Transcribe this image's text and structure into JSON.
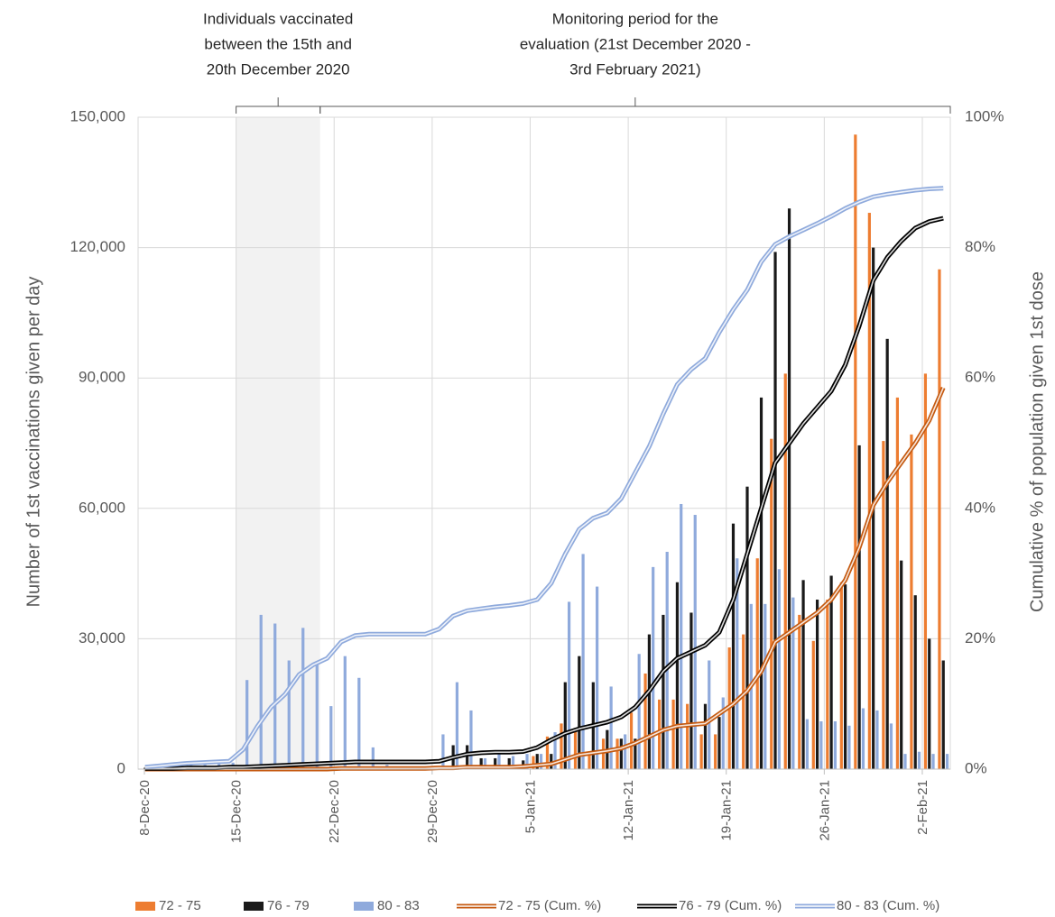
{
  "chart_data": {
    "type": "bar",
    "annotations": [
      [
        "Individuals vaccinated",
        "between the 15th and",
        "20th December 2020"
      ],
      [
        "Monitoring period for the",
        "evaluation (21st December 2020 -",
        "3rd February 2021)"
      ]
    ],
    "y_label": "Number of 1st vaccinations given per day",
    "y2_label": "Cumulative % of population given 1st dose",
    "categories": [
      "8-Dec-20",
      null,
      null,
      null,
      null,
      null,
      null,
      "15-Dec-20",
      null,
      null,
      null,
      null,
      null,
      null,
      "22-Dec-20",
      null,
      null,
      null,
      null,
      null,
      null,
      "29-Dec-20",
      null,
      null,
      null,
      null,
      null,
      null,
      "5-Jan-21",
      null,
      null,
      null,
      null,
      null,
      null,
      "12-Jan-21",
      null,
      null,
      null,
      null,
      null,
      null,
      "19-Jan-21",
      null,
      null,
      null,
      null,
      null,
      null,
      "26-Jan-21",
      null,
      null,
      null,
      null,
      null,
      null,
      "2-Feb-21",
      null
    ],
    "ylim": [
      0,
      150000
    ],
    "yticks": [
      0,
      {
        "value": 30000,
        "label": "30,000"
      },
      {
        "value": 60000,
        "label": "60,000"
      },
      {
        "value": 90000,
        "label": "90,000"
      },
      {
        "value": 120000,
        "label": "120,000"
      },
      {
        "value": 150000,
        "label": "150,000"
      }
    ],
    "y2lim": [
      0,
      100
    ],
    "y2ticks": [
      {
        "value": 0,
        "label": "0%"
      },
      {
        "value": 20,
        "label": "20%"
      },
      {
        "value": 40,
        "label": "40%"
      },
      {
        "value": 60,
        "label": "60%"
      },
      {
        "value": 80,
        "label": "80%"
      },
      {
        "value": 100,
        "label": "100%"
      }
    ],
    "grid": true,
    "legend": "bottom",
    "series": [
      {
        "name": "72 - 75",
        "type": "bar",
        "color": "#ed7d31",
        "values": [
          0,
          0,
          0,
          0,
          0,
          0,
          0,
          100,
          100,
          100,
          100,
          100,
          100,
          100,
          100,
          100,
          0,
          0,
          0,
          0,
          0,
          200,
          300,
          200,
          100,
          200,
          200,
          1000,
          3000,
          7500,
          10500,
          9000,
          4000,
          7000,
          7000,
          13000,
          22000,
          16000,
          16000,
          15000,
          8000,
          8000,
          28000,
          31000,
          48500,
          76000,
          91000,
          35500,
          29500,
          39000,
          43000,
          146000,
          128000,
          75500,
          85500,
          77000,
          91000,
          115000
        ]
      },
      {
        "name": "76 - 79",
        "type": "bar",
        "color": "#1a1a1a",
        "values": [
          300,
          300,
          400,
          400,
          300,
          300,
          300,
          400,
          400,
          400,
          400,
          400,
          400,
          500,
          600,
          600,
          500,
          300,
          300,
          300,
          300,
          500,
          5500,
          5500,
          2500,
          2500,
          2500,
          2000,
          3500,
          3500,
          20000,
          26000,
          20000,
          9000,
          7000,
          7000,
          31000,
          35500,
          43000,
          36000,
          15000,
          12000,
          56500,
          65000,
          85500,
          119000,
          129000,
          43500,
          39000,
          44500,
          42500,
          74500,
          120000,
          99000,
          48000,
          40000,
          30000,
          25000
        ]
      },
      {
        "name": "80 - 83",
        "type": "bar",
        "color": "#8faadc",
        "values": [
          500,
          800,
          1500,
          1200,
          1000,
          1200,
          1500,
          20500,
          35500,
          33500,
          25000,
          32500,
          24500,
          14500,
          26000,
          21000,
          5000,
          1000,
          500,
          500,
          500,
          8000,
          20000,
          13500,
          2500,
          4000,
          3000,
          3500,
          3500,
          8500,
          38500,
          49500,
          42000,
          19000,
          8000,
          26500,
          46500,
          50000,
          61000,
          58500,
          25000,
          16500,
          48500,
          38000,
          38000,
          46000,
          39500,
          11500,
          11000,
          11000,
          10000,
          14000,
          13500,
          10500,
          3500,
          4000,
          3500,
          3500
        ]
      },
      {
        "name": "72 - 75 (Cum. %)",
        "type": "line",
        "axis": "y2",
        "color": "#c55a11",
        "values": [
          0,
          0,
          0,
          0,
          0,
          0,
          0,
          0,
          0,
          0,
          0,
          0,
          0,
          0,
          0.1,
          0.1,
          0.1,
          0.1,
          0.1,
          0.1,
          0.1,
          0.2,
          0.2,
          0.3,
          0.3,
          0.3,
          0.3,
          0.4,
          0.6,
          0.8,
          1.5,
          2.2,
          2.5,
          2.8,
          3.2,
          4,
          5,
          6,
          6.6,
          6.8,
          7,
          8.5,
          10,
          12,
          15,
          19.5,
          21,
          22.5,
          24,
          26,
          29,
          34,
          40.5,
          44,
          47,
          50,
          53.5,
          58.5
        ]
      },
      {
        "name": "76 - 79 (Cum. %)",
        "type": "line",
        "axis": "y2",
        "color": "#000000",
        "values": [
          0.1,
          0.1,
          0.1,
          0.2,
          0.2,
          0.2,
          0.3,
          0.3,
          0.4,
          0.5,
          0.6,
          0.7,
          0.8,
          0.9,
          1,
          1.1,
          1.1,
          1.1,
          1.1,
          1.1,
          1.1,
          1.2,
          1.8,
          2.3,
          2.5,
          2.6,
          2.6,
          2.7,
          3.3,
          4.5,
          5.5,
          6.2,
          6.7,
          7.2,
          8,
          9.5,
          12,
          15,
          17,
          18,
          19,
          21,
          26,
          33,
          40,
          47,
          50,
          53,
          55.5,
          58,
          62,
          68,
          75,
          78.5,
          81,
          83,
          84,
          84.5
        ]
      },
      {
        "name": "80 - 83 (Cum. %)",
        "type": "line",
        "axis": "y2",
        "color": "#8faadc",
        "values": [
          0.3,
          0.5,
          0.7,
          0.9,
          1,
          1.1,
          1.2,
          3,
          6.5,
          9.5,
          11.5,
          14.5,
          16,
          17,
          19.5,
          20.5,
          20.7,
          20.7,
          20.7,
          20.7,
          20.7,
          21.5,
          23.5,
          24.3,
          24.6,
          24.9,
          25.1,
          25.4,
          26,
          28.5,
          33,
          36.8,
          38.5,
          39.3,
          41.5,
          45.5,
          49.5,
          54.5,
          59,
          61.3,
          63,
          67,
          70.5,
          73.5,
          77.8,
          80.5,
          81.7,
          82.7,
          83.7,
          84.8,
          86,
          87,
          87.8,
          88.2,
          88.5,
          88.8,
          89,
          89.1
        ]
      }
    ]
  }
}
